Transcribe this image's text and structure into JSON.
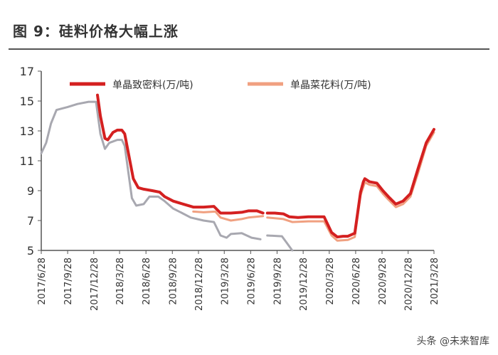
{
  "header": {
    "figure_title": "图 9：硅料价格大幅上涨"
  },
  "watermark": "头条 @未来智库",
  "chart_data": {
    "type": "line",
    "title": "图 9：硅料价格大幅上涨",
    "xlabel": "",
    "ylabel": "",
    "ylim": [
      5,
      17
    ],
    "yticks": [
      5,
      7,
      9,
      11,
      13,
      15,
      17
    ],
    "xlim": [
      "2017-06-28",
      "2021-03-28"
    ],
    "xticks": [
      {
        "date": "2017-06-28",
        "label": "2017/6/28"
      },
      {
        "date": "2017-09-28",
        "label": "2017/9/28"
      },
      {
        "date": "2017-12-28",
        "label": "2017/12/28"
      },
      {
        "date": "2018-03-28",
        "label": "2018/3/28"
      },
      {
        "date": "2018-06-28",
        "label": "2018/6/28"
      },
      {
        "date": "2018-09-28",
        "label": "2018/9/28"
      },
      {
        "date": "2018-12-28",
        "label": "2018/12/28"
      },
      {
        "date": "2019-03-28",
        "label": "2019/3/28"
      },
      {
        "date": "2019-06-28",
        "label": "2019/6/28"
      },
      {
        "date": "2019-09-28",
        "label": "2019/9/28"
      },
      {
        "date": "2019-12-28",
        "label": "2019/12/28"
      },
      {
        "date": "2020-03-28",
        "label": "2020/3/28"
      },
      {
        "date": "2020-06-28",
        "label": "2020/6/28"
      },
      {
        "date": "2020-09-28",
        "label": "2020/9/28"
      },
      {
        "date": "2020-12-28",
        "label": "2020/12/28"
      },
      {
        "date": "2021-03-28",
        "label": "2021/3/28"
      }
    ],
    "grid": false,
    "legend_position": "top",
    "series": [
      {
        "name": "单晶致密料(万/吨)",
        "color": "#d42020",
        "segments": [
          [
            [
              "2018-01-10",
              15.4
            ],
            [
              "2018-01-20",
              14.0
            ],
            [
              "2018-02-05",
              12.5
            ],
            [
              "2018-02-15",
              12.4
            ],
            [
              "2018-03-05",
              12.9
            ],
            [
              "2018-03-20",
              13.05
            ],
            [
              "2018-04-05",
              13.05
            ],
            [
              "2018-04-15",
              12.8
            ],
            [
              "2018-05-15",
              9.8
            ],
            [
              "2018-06-01",
              9.2
            ],
            [
              "2018-06-20",
              9.1
            ],
            [
              "2018-07-20",
              9.0
            ],
            [
              "2018-08-15",
              8.9
            ],
            [
              "2018-09-01",
              8.6
            ],
            [
              "2018-10-01",
              8.3
            ],
            [
              "2018-11-05",
              8.1
            ],
            [
              "2018-12-10",
              7.9
            ],
            [
              "2019-01-15",
              7.9
            ],
            [
              "2019-02-20",
              7.95
            ],
            [
              "2019-03-15",
              7.5
            ],
            [
              "2019-04-20",
              7.5
            ],
            [
              "2019-05-28",
              7.55
            ],
            [
              "2019-06-20",
              7.65
            ],
            [
              "2019-07-20",
              7.65
            ],
            [
              "2019-08-10",
              7.5
            ]
          ],
          [
            [
              "2019-08-25",
              7.5
            ],
            [
              "2019-09-20",
              7.5
            ],
            [
              "2019-10-20",
              7.45
            ],
            [
              "2019-11-10",
              7.25
            ],
            [
              "2019-12-10",
              7.2
            ],
            [
              "2020-01-15",
              7.25
            ],
            [
              "2020-02-20",
              7.25
            ],
            [
              "2020-03-10",
              7.25
            ],
            [
              "2020-04-05",
              6.2
            ],
            [
              "2020-04-25",
              5.9
            ],
            [
              "2020-05-15",
              5.95
            ],
            [
              "2020-06-01",
              5.95
            ],
            [
              "2020-06-25",
              6.15
            ],
            [
              "2020-07-15",
              8.9
            ],
            [
              "2020-07-25",
              9.6
            ],
            [
              "2020-07-30",
              9.8
            ],
            [
              "2020-08-15",
              9.6
            ],
            [
              "2020-09-10",
              9.5
            ],
            [
              "2020-10-01",
              9.0
            ],
            [
              "2020-10-20",
              8.6
            ],
            [
              "2020-11-15",
              8.1
            ],
            [
              "2020-12-10",
              8.3
            ],
            [
              "2021-01-05",
              8.8
            ],
            [
              "2021-02-01",
              10.5
            ],
            [
              "2021-03-01",
              12.2
            ],
            [
              "2021-03-28",
              13.1
            ]
          ]
        ]
      },
      {
        "name": "单晶菜花料(万/吨)",
        "color": "#f0a080",
        "segments": [
          [
            [
              "2018-12-10",
              7.6
            ],
            [
              "2019-01-15",
              7.55
            ],
            [
              "2019-02-25",
              7.6
            ],
            [
              "2019-03-15",
              7.2
            ],
            [
              "2019-04-20",
              7.0
            ],
            [
              "2019-05-28",
              7.1
            ],
            [
              "2019-06-20",
              7.2
            ],
            [
              "2019-08-10",
              7.3
            ]
          ],
          [
            [
              "2019-08-25",
              7.2
            ],
            [
              "2019-10-20",
              7.1
            ],
            [
              "2019-11-20",
              6.9
            ],
            [
              "2020-01-15",
              6.95
            ],
            [
              "2020-03-10",
              6.95
            ],
            [
              "2020-04-05",
              6.0
            ],
            [
              "2020-04-25",
              5.65
            ],
            [
              "2020-06-01",
              5.7
            ],
            [
              "2020-06-25",
              5.9
            ],
            [
              "2020-07-15",
              8.7
            ],
            [
              "2020-07-30",
              9.55
            ],
            [
              "2020-08-15",
              9.4
            ],
            [
              "2020-09-10",
              9.3
            ],
            [
              "2020-10-01",
              8.8
            ],
            [
              "2020-10-20",
              8.4
            ],
            [
              "2020-11-15",
              7.9
            ],
            [
              "2020-12-10",
              8.1
            ],
            [
              "2021-01-05",
              8.6
            ],
            [
              "2021-02-01",
              10.2
            ],
            [
              "2021-03-01",
              12.0
            ],
            [
              "2021-03-28",
              12.9
            ]
          ]
        ]
      },
      {
        "name": "",
        "color": "#a8a8b0",
        "segments": [
          [
            [
              "2017-06-28",
              11.5
            ],
            [
              "2017-07-15",
              12.2
            ],
            [
              "2017-08-01",
              13.5
            ],
            [
              "2017-08-20",
              14.4
            ],
            [
              "2017-09-28",
              14.6
            ],
            [
              "2017-11-01",
              14.8
            ],
            [
              "2017-12-10",
              14.95
            ],
            [
              "2018-01-05",
              14.95
            ],
            [
              "2018-01-20",
              12.8
            ],
            [
              "2018-02-05",
              11.8
            ],
            [
              "2018-02-20",
              12.2
            ],
            [
              "2018-03-20",
              12.4
            ],
            [
              "2018-04-05",
              12.4
            ],
            [
              "2018-04-15",
              12.0
            ],
            [
              "2018-05-10",
              8.5
            ],
            [
              "2018-05-25",
              8.0
            ],
            [
              "2018-06-20",
              8.1
            ],
            [
              "2018-07-10",
              8.6
            ],
            [
              "2018-08-10",
              8.6
            ],
            [
              "2018-09-01",
              8.3
            ],
            [
              "2018-10-01",
              7.8
            ],
            [
              "2018-11-01",
              7.5
            ],
            [
              "2018-12-01",
              7.2
            ],
            [
              "2019-01-15",
              7.0
            ],
            [
              "2019-02-20",
              6.9
            ],
            [
              "2019-03-15",
              6.0
            ],
            [
              "2019-04-05",
              5.85
            ],
            [
              "2019-04-20",
              6.1
            ],
            [
              "2019-05-28",
              6.15
            ],
            [
              "2019-07-01",
              5.85
            ],
            [
              "2019-08-01",
              5.75
            ]
          ],
          [
            [
              "2019-08-25",
              6.0
            ],
            [
              "2019-10-15",
              5.95
            ],
            [
              "2019-11-01",
              5.5
            ],
            [
              "2019-11-20",
              5.0
            ]
          ]
        ]
      }
    ]
  }
}
